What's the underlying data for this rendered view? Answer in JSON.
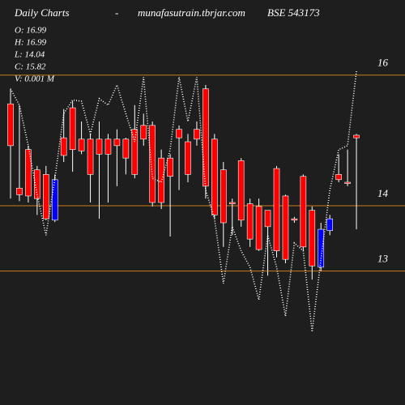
{
  "chart_data": {
    "type": "candlestick",
    "title": "Daily Charts",
    "separator": "-",
    "site": "munafasutrain.tbrjar.com",
    "symbol": "BSE 543173",
    "info": [
      "O: 16.99",
      "H: 16.99",
      "L: 14.04",
      "C: 15.82",
      "V: 0.001 M"
    ],
    "open": [
      15.56,
      14.27,
      14.86,
      14.55,
      14.48,
      13.78,
      15.04,
      15.5,
      15.02,
      15.02,
      15.02,
      15.02,
      15.02,
      15.02,
      15.17,
      15.23,
      15.23,
      14.73,
      14.73,
      15.17,
      14.98,
      15.17,
      15.79,
      15.02,
      14.55,
      14.05,
      14.69,
      14.03,
      13.99,
      13.93,
      14.57,
      14.15,
      13.8,
      14.45,
      13.93,
      13.06,
      13.62,
      14.48,
      14.36,
      15.08
    ],
    "high": [
      15.79,
      15.54,
      14.92,
      14.61,
      14.61,
      14.48,
      15.48,
      15.6,
      15.29,
      15.1,
      15.29,
      15.1,
      15.17,
      15.04,
      15.54,
      15.41,
      15.29,
      14.86,
      14.79,
      15.23,
      15.1,
      15.29,
      15.85,
      15.1,
      14.67,
      14.11,
      14.73,
      14.11,
      14.11,
      13.93,
      14.61,
      14.17,
      13.83,
      14.48,
      13.99,
      13.74,
      13.86,
      14.79,
      14.86,
      15.1
    ],
    "low": [
      14.11,
      14.07,
      14.05,
      13.86,
      13.78,
      13.75,
      14.67,
      14.52,
      14.79,
      14.05,
      13.8,
      14.05,
      14.3,
      14.48,
      14.42,
      14.92,
      13.99,
      13.95,
      13.53,
      14.24,
      14.36,
      14.92,
      14.11,
      13.8,
      13.37,
      13.55,
      13.68,
      13.37,
      13.31,
      12.93,
      13.21,
      13.12,
      13.74,
      13.31,
      12.87,
      13.0,
      13.55,
      14.36,
      14.3,
      13.64
    ],
    "close": [
      14.92,
      14.17,
      14.15,
      14.11,
      13.8,
      14.4,
      14.77,
      14.86,
      14.84,
      14.48,
      14.79,
      14.79,
      14.92,
      14.73,
      14.48,
      15.02,
      14.05,
      14.05,
      14.45,
      15.04,
      14.48,
      15.02,
      14.3,
      13.86,
      13.74,
      14.03,
      13.78,
      13.49,
      13.33,
      13.68,
      13.31,
      13.18,
      13.78,
      13.37,
      13.08,
      13.64,
      13.8,
      14.4,
      14.35,
      15.04
    ],
    "up_color": "#0000ff",
    "down_color": "#ff0000",
    "line": {
      "color": "#ffffff",
      "values": [
        15.79,
        15.54,
        14.92,
        14.17,
        13.55,
        14.42,
        15.41,
        15.62,
        15.6,
        15.1,
        15.64,
        15.54,
        15.85,
        15.41,
        14.98,
        15.97,
        14.42,
        14.36,
        14.86,
        15.97,
        15.29,
        15.97,
        14.24,
        13.8,
        12.81,
        13.68,
        13.31,
        13.06,
        12.56,
        13.55,
        13.06,
        12.31,
        13.43,
        13.31,
        12.07,
        13.18,
        14.24,
        14.86,
        14.92,
        16.06
      ]
    },
    "ylim": [
      10.95,
      17.15
    ],
    "yticks": [
      13,
      14,
      16
    ],
    "grid": true,
    "grid_color": "#cc7a1a"
  }
}
